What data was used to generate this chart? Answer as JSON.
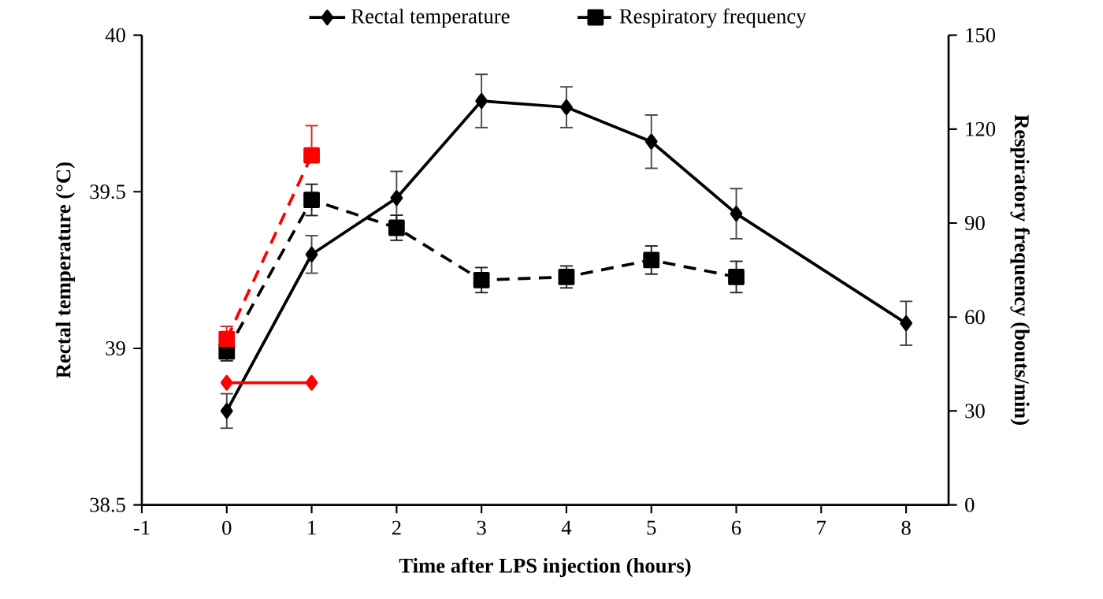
{
  "chart_data": {
    "type": "line",
    "xlabel": "Time after LPS injection (hours)",
    "ylabel": "Rectal temperature (°C)",
    "y2label": "Respiratory frequency (bouts/min)",
    "xlim": [
      -1,
      8.5
    ],
    "xticks": [
      -1,
      0,
      1,
      2,
      3,
      4,
      5,
      6,
      7,
      8
    ],
    "ylim": [
      38.5,
      40
    ],
    "yticks": [
      38.5,
      39,
      39.5,
      40
    ],
    "y2lim": [
      0,
      150
    ],
    "y2ticks": [
      0,
      30,
      60,
      90,
      120,
      150
    ],
    "legend": "top",
    "grid": false,
    "series": [
      {
        "name": "Rectal temperature",
        "color": "#000000",
        "marker": "diamond",
        "line_style": "solid",
        "x": [
          0,
          1,
          2,
          3,
          4,
          5,
          6,
          8
        ],
        "values": [
          38.8,
          39.3,
          39.48,
          39.79,
          39.77,
          39.66,
          39.43,
          39.08
        ],
        "errors": [
          0.055,
          0.06,
          0.085,
          0.085,
          0.065,
          0.085,
          0.08,
          0.07
        ]
      },
      {
        "name": "Respiratory frequency",
        "color": "#000000",
        "marker": "square",
        "line_style": "dashed",
        "axis": "y2",
        "x": [
          0,
          1,
          2,
          3,
          4,
          5,
          6
        ],
        "values": [
          49,
          97.4,
          88.5,
          71.8,
          72.8,
          78.2,
          72.8
        ],
        "errors": [
          3,
          5,
          4,
          4,
          3.5,
          4.5,
          5
        ]
      },
      {
        "color": "#ff0000",
        "marker": "diamond",
        "line_style": "solid",
        "x": [
          0,
          1
        ],
        "values": [
          38.89,
          38.89
        ]
      },
      {
        "color": "#ff0000",
        "marker": "square",
        "line_style": "dashed",
        "axis": "y2",
        "x": [
          0,
          1
        ],
        "values": [
          53,
          111.6
        ],
        "errors": [
          [
            53,
            57
          ],
          [
            111.6,
            121.1
          ]
        ]
      }
    ]
  }
}
